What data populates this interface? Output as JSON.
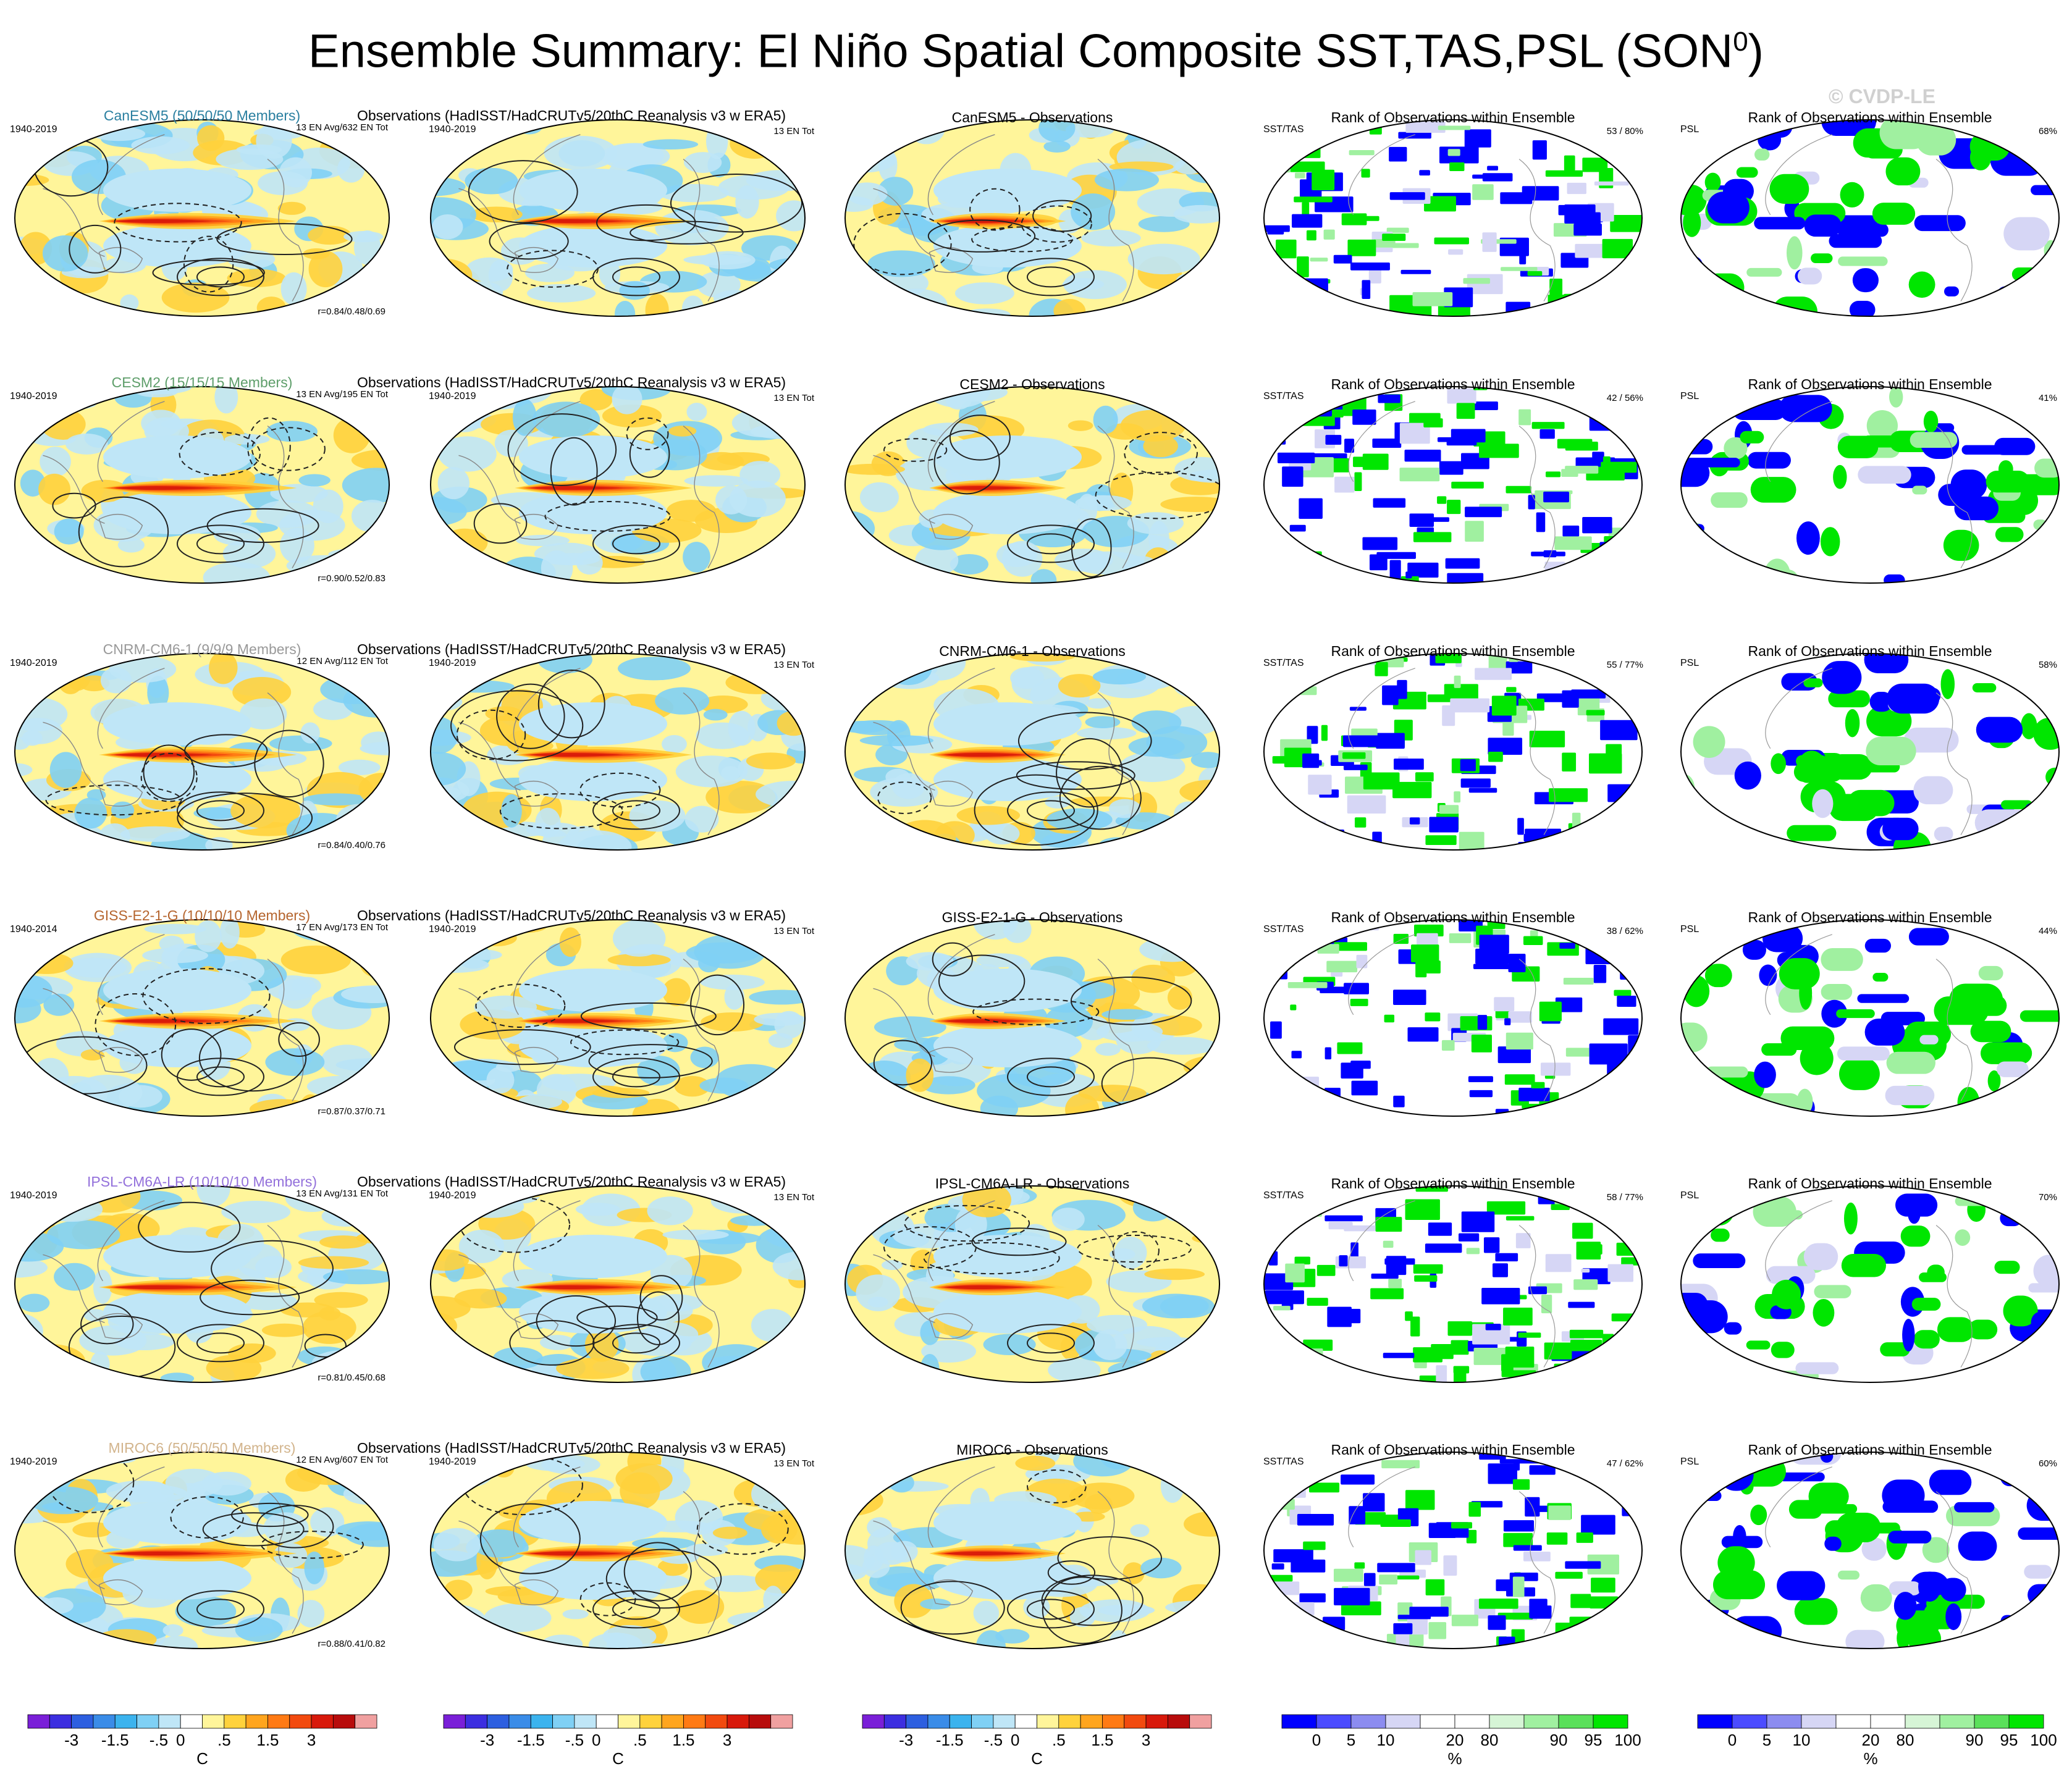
{
  "title": {
    "text": "Ensemble Summary: El Niño Spatial Composite SST,TAS,PSL (SON",
    "superscript": "0",
    "close": ")"
  },
  "copyright": "© CVDP-LE",
  "colors": {
    "model_names": [
      "#2a7fa0",
      "#5e9e6a",
      "#999999",
      "#b5652e",
      "#9370db",
      "#d2b48c"
    ],
    "anomaly_scale": [
      "#7a1fd8",
      "#3c2ee0",
      "#2d5fe0",
      "#3a8ce8",
      "#3bb3ee",
      "#7fd0f5",
      "#bfe6f7",
      "#ffffff",
      "#fff59a",
      "#ffd23c",
      "#ffa51e",
      "#ff7a14",
      "#f24a0f",
      "#d8190b",
      "#b80c0c",
      "#f0a0a0"
    ],
    "rank_scale": [
      "#0000ff",
      "#4b4bff",
      "#8c8cf0",
      "#d6d6f5",
      "#ffffff",
      "#ffffff",
      "#d6f5d6",
      "#a0f0a0",
      "#5ae05a",
      "#00e600"
    ]
  },
  "chart_data": [
    {
      "type": "map-grid",
      "rows": [
        {
          "model": "CanESM5",
          "model_label": "CanESM5 (50/50/50 Members)",
          "model_years": "1940-2019",
          "model_stats": "13 EN Avg/632 EN Tot",
          "pattern_corr": "r=0.84/0.48/0.69",
          "obs_title": "Observations (HadISST/HadCRUTv5/20thC Reanalysis v3 w ERA5)",
          "obs_years": "1940-2019",
          "obs_stats": "13 EN Tot",
          "diff_title": "CanESM5 - Observations",
          "rank_title": "Rank of Observations within Ensemble",
          "rank_sst_label": "SST/TAS",
          "rank_sst_value": "53 /  80%",
          "rank_psl_label": "PSL",
          "rank_psl_value": "68%"
        },
        {
          "model": "CESM2",
          "model_label": "CESM2 (15/15/15 Members)",
          "model_years": "1940-2019",
          "model_stats": "13 EN Avg/195 EN Tot",
          "pattern_corr": "r=0.90/0.52/0.83",
          "obs_title": "Observations (HadISST/HadCRUTv5/20thC Reanalysis v3 w ERA5)",
          "obs_years": "1940-2019",
          "obs_stats": "13 EN Tot",
          "diff_title": "CESM2 - Observations",
          "rank_title": "Rank of Observations within Ensemble",
          "rank_sst_label": "SST/TAS",
          "rank_sst_value": "42 /  56%",
          "rank_psl_label": "PSL",
          "rank_psl_value": "41%"
        },
        {
          "model": "CNRM-CM6-1",
          "model_label": "CNRM-CM6-1 (9/9/9 Members)",
          "model_years": "1940-2019",
          "model_stats": "12 EN Avg/112 EN Tot",
          "pattern_corr": "r=0.84/0.40/0.76",
          "obs_title": "Observations (HadISST/HadCRUTv5/20thC Reanalysis v3 w ERA5)",
          "obs_years": "1940-2019",
          "obs_stats": "13 EN Tot",
          "diff_title": "CNRM-CM6-1 - Observations",
          "rank_title": "Rank of Observations within Ensemble",
          "rank_sst_label": "SST/TAS",
          "rank_sst_value": "55 /  77%",
          "rank_psl_label": "PSL",
          "rank_psl_value": "58%"
        },
        {
          "model": "GISS-E2-1-G",
          "model_label": "GISS-E2-1-G (10/10/10 Members)",
          "model_years": "1940-2014",
          "model_stats": "17 EN Avg/173 EN Tot",
          "pattern_corr": "r=0.87/0.37/0.71",
          "obs_title": "Observations (HadISST/HadCRUTv5/20thC Reanalysis v3 w ERA5)",
          "obs_years": "1940-2019",
          "obs_stats": "13 EN Tot",
          "diff_title": "GISS-E2-1-G - Observations",
          "rank_title": "Rank of Observations within Ensemble",
          "rank_sst_label": "SST/TAS",
          "rank_sst_value": "38 /  62%",
          "rank_psl_label": "PSL",
          "rank_psl_value": "44%"
        },
        {
          "model": "IPSL-CM6A-LR",
          "model_label": "IPSL-CM6A-LR (10/10/10 Members)",
          "model_years": "1940-2019",
          "model_stats": "13 EN Avg/131 EN Tot",
          "pattern_corr": "r=0.81/0.45/0.68",
          "obs_title": "Observations (HadISST/HadCRUTv5/20thC Reanalysis v3 w ERA5)",
          "obs_years": "1940-2019",
          "obs_stats": "13 EN Tot",
          "diff_title": "IPSL-CM6A-LR - Observations",
          "rank_title": "Rank of Observations within Ensemble",
          "rank_sst_label": "SST/TAS",
          "rank_sst_value": "58 /  77%",
          "rank_psl_label": "PSL",
          "rank_psl_value": "70%"
        },
        {
          "model": "MIROC6",
          "model_label": "MIROC6 (50/50/50 Members)",
          "model_years": "1940-2019",
          "model_stats": "12 EN Avg/607 EN Tot",
          "pattern_corr": "r=0.88/0.41/0.82",
          "obs_title": "Observations (HadISST/HadCRUTv5/20thC Reanalysis v3 w ERA5)",
          "obs_years": "1940-2019",
          "obs_stats": "13 EN Tot",
          "diff_title": "MIROC6 - Observations",
          "rank_title": "Rank of Observations within Ensemble",
          "rank_sst_label": "SST/TAS",
          "rank_sst_value": "47 /  62%",
          "rank_psl_label": "PSL",
          "rank_psl_value": "60%"
        }
      ],
      "colorbars": {
        "anomaly": {
          "ticks": [
            "-3",
            "-1.5",
            "-.5",
            "0",
            ".5",
            "1.5",
            "3"
          ],
          "unit": "C"
        },
        "rank": {
          "ticks": [
            "0",
            "5",
            "10",
            "20",
            "80",
            "90",
            "95",
            "100"
          ],
          "unit": "%"
        }
      }
    }
  ]
}
